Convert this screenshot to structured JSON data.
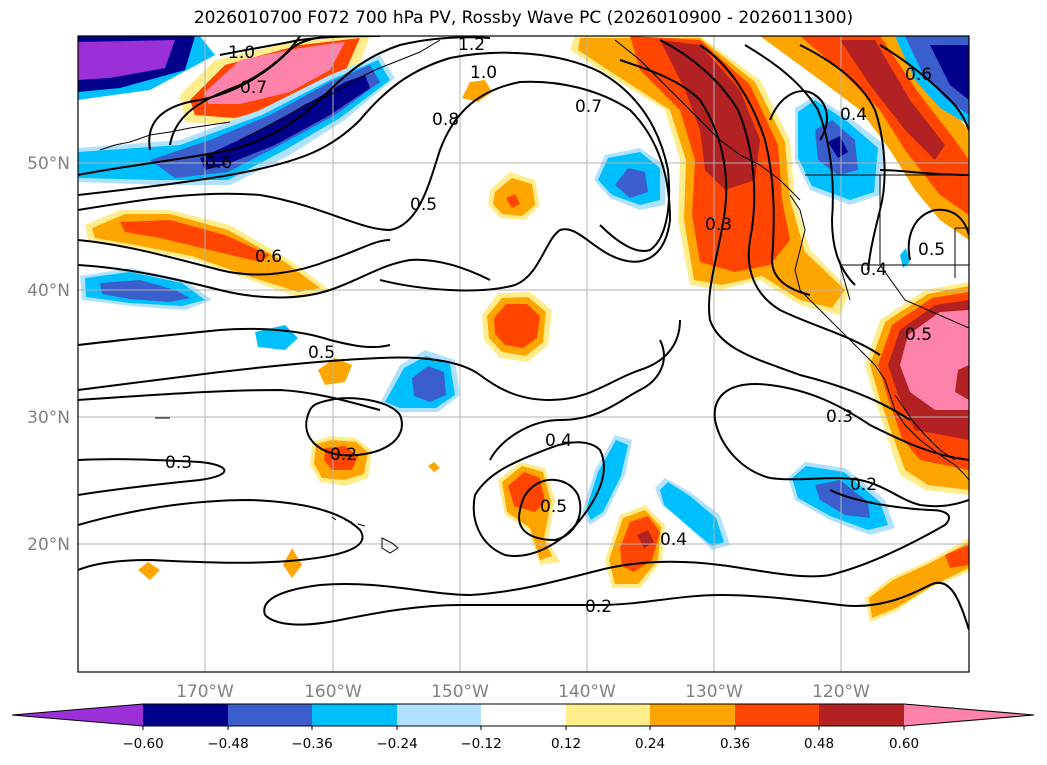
{
  "title": "2026010700 F072 700 hPa PV, Rossby Wave PC (2026010900 - 2026011300)",
  "lat_labels": [
    "50°N",
    "40°N",
    "30°N",
    "20°N"
  ],
  "lon_labels": [
    "170°W",
    "160°W",
    "150°W",
    "140°W",
    "130°W",
    "120°W"
  ],
  "contour_labels": [
    "1.0",
    "1.2",
    "1.0",
    "0.7",
    "0.8",
    "0.7",
    "0.6",
    "0.6",
    "0.5",
    "0.3",
    "0.4",
    "0.4",
    "0.5",
    "0.5",
    "0.3",
    "0.2",
    "0.4",
    "0.5",
    "0.4",
    "0.3",
    "0.2",
    "0.2",
    "0.5",
    "0.6"
  ],
  "colorbar": {
    "ticks": [
      "−0.60",
      "−0.48",
      "−0.36",
      "−0.24",
      "−0.12",
      "0.12",
      "0.24",
      "0.36",
      "0.48",
      "0.60"
    ],
    "colors": [
      "#9b30d9",
      "#00008b",
      "#3a5fcd",
      "#00bfff",
      "#b0e2ff",
      "#ffffff",
      "#ffec8b",
      "#ffa500",
      "#ff4500",
      "#b22222",
      "#ff82ab",
      "#ff82ab"
    ]
  },
  "palette": {
    "grid": "#b3b3b3",
    "contour": "#000000",
    "coast": "#000000"
  }
}
